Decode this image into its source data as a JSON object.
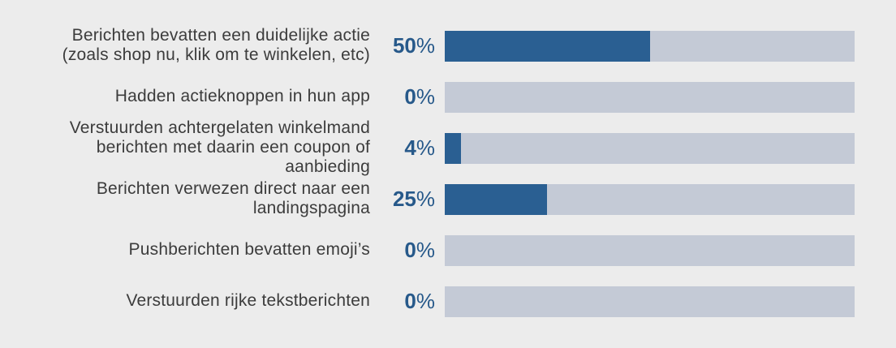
{
  "chart_data": {
    "type": "bar",
    "orientation": "horizontal",
    "xlim": [
      0,
      100
    ],
    "categories": [
      "Berichten bevatten een duidelijke actie (zoals shop nu, klik om te winkelen, etc)",
      "Hadden actieknoppen in hun app",
      "Verstuurden achtergelaten winkelmand berichten met daarin een coupon of aanbieding",
      "Berichten verwezen direct naar een landingspagina",
      "Pushberichten bevatten emoji’s",
      "Verstuurden rijke tekstberichten"
    ],
    "values": [
      50,
      0,
      4,
      25,
      0,
      0
    ],
    "value_labels": [
      "50",
      "0",
      "4",
      "25",
      "0",
      "0"
    ],
    "value_suffix": "%",
    "grid": false,
    "legend": "none"
  },
  "rows": [
    {
      "lines": [
        "Berichten bevatten een duidelijke actie",
        "(zoals shop nu, klik om te winkelen, etc)"
      ]
    },
    {
      "lines": [
        "Hadden actieknoppen in hun app"
      ]
    },
    {
      "lines": [
        "Verstuurden achtergelaten winkelmand",
        "berichten met daarin een coupon of",
        "aanbieding"
      ]
    },
    {
      "lines": [
        "Berichten verwezen direct naar een",
        "landingspagina"
      ]
    },
    {
      "lines": [
        "Pushberichten bevatten emoji’s"
      ]
    },
    {
      "lines": [
        "Verstuurden rijke tekstberichten"
      ]
    }
  ],
  "colors": {
    "fill": "#2a5f92",
    "track": "#c4cad6",
    "value_text": "#27598a",
    "label_text": "#3c3c3c",
    "background": "#ececec"
  }
}
